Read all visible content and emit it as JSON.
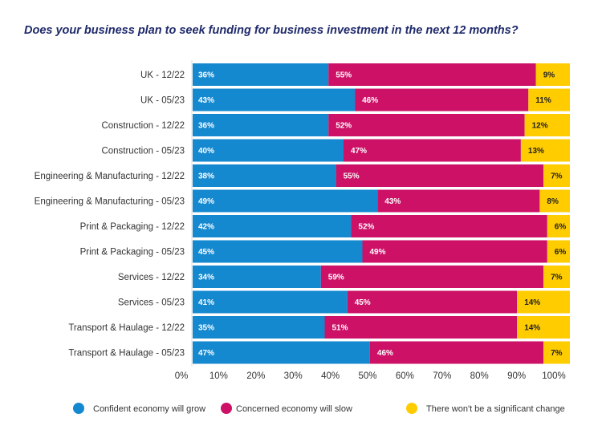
{
  "chart_data": {
    "type": "bar",
    "orientation": "horizontal",
    "stacked": true,
    "title": "Does your business plan to seek funding for business investment in the next 12 months?",
    "categories": [
      "UK - 12/22",
      "UK - 05/23",
      "Construction - 12/22",
      "Construction - 05/23",
      "Engineering & Manufacturing - 12/22",
      "Engineering & Manufacturing - 05/23",
      "Print & Packaging - 12/22",
      "Print & Packaging - 05/23",
      "Services - 12/22",
      "Services - 05/23",
      "Transport & Haulage - 12/22",
      "Transport & Haulage - 05/23"
    ],
    "series": [
      {
        "name": "Confident economy will grow",
        "color": "#1589d0",
        "values": [
          36,
          43,
          36,
          40,
          38,
          49,
          42,
          45,
          34,
          41,
          35,
          47
        ]
      },
      {
        "name": "Concerned economy will slow",
        "color": "#cc1166",
        "values": [
          55,
          46,
          52,
          47,
          55,
          43,
          52,
          49,
          59,
          45,
          51,
          46
        ]
      },
      {
        "name": "There won't be a significant change",
        "color": "#ffcc00",
        "values": [
          9,
          11,
          12,
          13,
          7,
          8,
          6,
          6,
          7,
          14,
          14,
          7
        ]
      }
    ],
    "xlim": [
      0,
      100
    ],
    "xticks": [
      "0%",
      "10%",
      "20%",
      "30%",
      "40%",
      "50%",
      "60%",
      "70%",
      "80%",
      "90%",
      "100%"
    ],
    "legend_position": "bottom",
    "grid": false
  }
}
